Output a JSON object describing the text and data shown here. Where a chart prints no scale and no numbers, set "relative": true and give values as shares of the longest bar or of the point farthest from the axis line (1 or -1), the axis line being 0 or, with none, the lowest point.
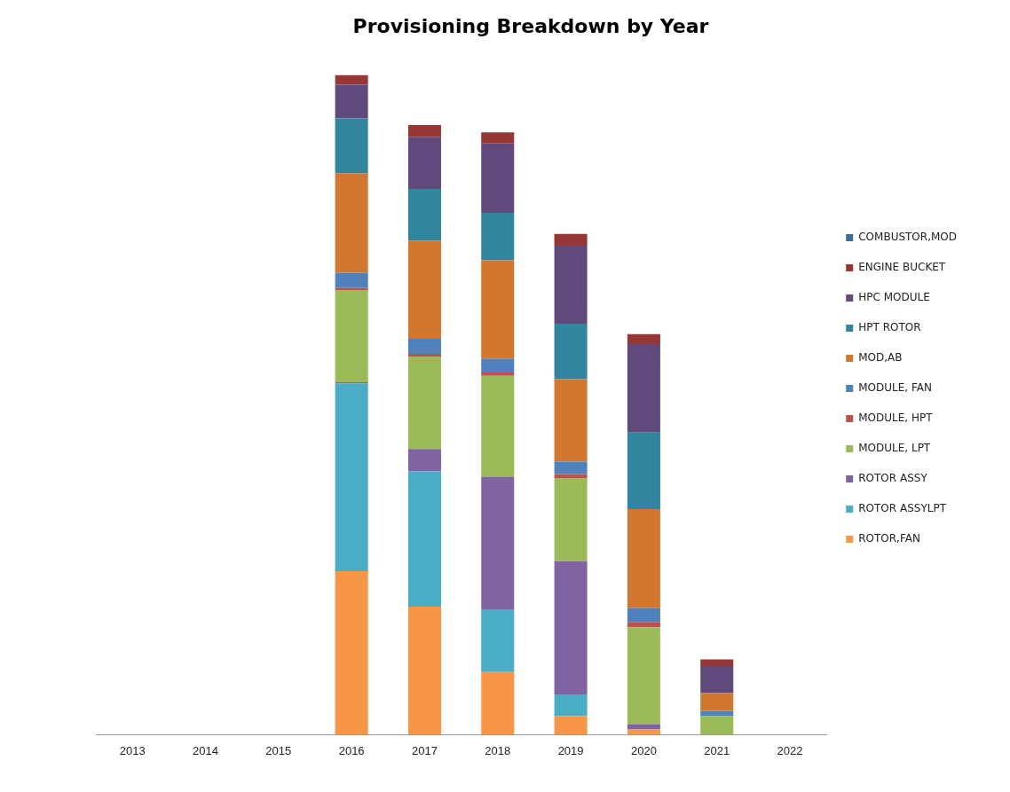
{
  "chart_data": {
    "type": "bar",
    "title": "Provisioning Breakdown by Year",
    "stacked": true,
    "relative": true,
    "legend": "right",
    "categories": [
      "2013",
      "2014",
      "2015",
      "2016",
      "2017",
      "2018",
      "2019",
      "2020",
      "2021",
      "2022"
    ],
    "series": [
      {
        "name": "ROTOR,FAN",
        "color": "#f79646",
        "values": [
          0,
          0,
          0,
          0.248,
          0.194,
          0.095,
          0.028,
          0.008,
          0,
          0
        ]
      },
      {
        "name": "ROTOR ASSYLPT",
        "color": "#4bacc6",
        "values": [
          0,
          0,
          0,
          0.284,
          0.205,
          0.094,
          0.033,
          0,
          0,
          0
        ]
      },
      {
        "name": "ROTOR ASSY",
        "color": "#8064a2",
        "values": [
          0,
          0,
          0,
          0.002,
          0.034,
          0.202,
          0.202,
          0.008,
          0,
          0
        ]
      },
      {
        "name": "MODULE, LPT",
        "color": "#9bbb59",
        "values": [
          0,
          0,
          0,
          0.14,
          0.14,
          0.153,
          0.126,
          0.147,
          0.028,
          0
        ]
      },
      {
        "name": "MODULE, HPT",
        "color": "#c0504d",
        "values": [
          0,
          0,
          0,
          0.003,
          0.004,
          0.005,
          0.006,
          0.008,
          0,
          0
        ]
      },
      {
        "name": "MODULE, FAN",
        "color": "#4f81bd",
        "values": [
          0,
          0,
          0,
          0.023,
          0.023,
          0.021,
          0.019,
          0.021,
          0.008,
          0
        ]
      },
      {
        "name": "MOD,AB",
        "color": "#d2772f",
        "values": [
          0,
          0,
          0,
          0.151,
          0.149,
          0.149,
          0.125,
          0.15,
          0.027,
          0
        ]
      },
      {
        "name": "HPT ROTOR",
        "color": "#31859c",
        "values": [
          0,
          0,
          0,
          0.083,
          0.078,
          0.072,
          0.084,
          0.116,
          0,
          0
        ]
      },
      {
        "name": "HPC MODULE",
        "color": "#604a7b",
        "values": [
          0,
          0,
          0,
          0.051,
          0.079,
          0.105,
          0.118,
          0.134,
          0.041,
          0
        ]
      },
      {
        "name": "ENGINE BUCKET",
        "color": "#953735",
        "values": [
          0,
          0,
          0,
          0.015,
          0.018,
          0.017,
          0.018,
          0.015,
          0.01,
          0
        ]
      },
      {
        "name": "COMBUSTOR,MOD",
        "color": "#3f6d99",
        "values": [
          0,
          0,
          0,
          0,
          0,
          0,
          0,
          0,
          0,
          0
        ]
      }
    ]
  }
}
